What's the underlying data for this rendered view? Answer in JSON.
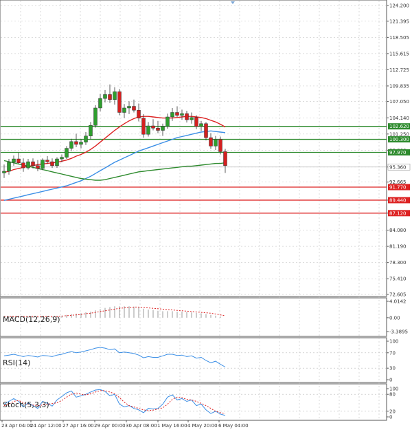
{
  "chart_data": {
    "type": "candlestick",
    "price": {
      "ylim": [
        72.605,
        124.2
      ],
      "y_ticks": [
        124.2,
        121.395,
        118.505,
        115.615,
        112.725,
        109.835,
        107.05,
        104.14,
        101.25,
        98.36,
        95.36,
        92.665,
        89.44,
        87.12,
        84.08,
        81.19,
        78.3,
        75.41,
        72.605
      ],
      "y_tick_labels": [
        "124.200",
        "121.395",
        "118.505",
        "115.615",
        "112.725",
        "109.835",
        "107.050",
        "104.140",
        "101.250",
        "98.360",
        "95.360",
        "92.665",
        "89.440",
        "87.120",
        "84.080",
        "81.190",
        "78.300",
        "75.410",
        "72.605"
      ],
      "resistance_levels": [
        {
          "value": 102.62,
          "label": "102.620",
          "color": "#2e8b2e"
        },
        {
          "value": 100.3,
          "label": "100.300",
          "color": "#2e8b2e"
        },
        {
          "value": 97.97,
          "label": "97.970",
          "color": "#2e8b2e"
        }
      ],
      "support_levels": [
        {
          "value": 91.77,
          "label": "91.770",
          "color": "#dd2222"
        },
        {
          "value": 89.44,
          "label": "89.440",
          "color": "#dd2222"
        },
        {
          "value": 87.12,
          "label": "87.120",
          "color": "#dd2222"
        }
      ],
      "current_price": {
        "value": 95.36,
        "label": "95.360"
      },
      "candles": [
        [
          94.3,
          95.8,
          93.4,
          94.6
        ],
        [
          94.6,
          96.8,
          94.0,
          96.2
        ],
        [
          96.2,
          97.4,
          95.6,
          96.8
        ],
        [
          96.8,
          97.9,
          95.9,
          96.1
        ],
        [
          96.1,
          96.9,
          94.5,
          95.2
        ],
        [
          95.2,
          96.8,
          94.9,
          96.3
        ],
        [
          96.3,
          96.9,
          95.1,
          95.6
        ],
        [
          95.6,
          96.6,
          94.6,
          95.1
        ],
        [
          95.1,
          96.9,
          94.8,
          96.6
        ],
        [
          96.6,
          97.3,
          95.9,
          96.3
        ],
        [
          96.3,
          96.9,
          95.2,
          95.6
        ],
        [
          95.6,
          97.1,
          95.2,
          96.8
        ],
        [
          96.8,
          97.6,
          96.2,
          97.1
        ],
        [
          97.1,
          99.1,
          96.8,
          98.7
        ],
        [
          98.7,
          100.4,
          98.2,
          99.9
        ],
        [
          99.9,
          101.3,
          98.9,
          99.4
        ],
        [
          99.4,
          100.3,
          98.7,
          99.8
        ],
        [
          99.8,
          101.6,
          99.3,
          100.9
        ],
        [
          100.9,
          103.4,
          100.3,
          102.8
        ],
        [
          102.8,
          106.4,
          102.4,
          105.9
        ],
        [
          105.9,
          108.4,
          105.3,
          107.6
        ],
        [
          107.6,
          109.1,
          106.9,
          108.3
        ],
        [
          108.3,
          110.1,
          106.8,
          107.4
        ],
        [
          107.4,
          109.6,
          106.5,
          108.8
        ],
        [
          108.8,
          109.3,
          104.6,
          105.1
        ],
        [
          105.1,
          106.6,
          104.1,
          105.9
        ],
        [
          105.9,
          107.1,
          104.8,
          106.2
        ],
        [
          106.2,
          107.4,
          105.1,
          105.5
        ],
        [
          105.5,
          106.7,
          103.5,
          104.1
        ],
        [
          104.1,
          104.8,
          100.6,
          101.2
        ],
        [
          101.2,
          103.4,
          100.8,
          102.7
        ],
        [
          102.7,
          103.9,
          101.9,
          102.3
        ],
        [
          102.3,
          103.6,
          101.4,
          101.9
        ],
        [
          101.9,
          103.1,
          100.9,
          102.6
        ],
        [
          102.6,
          104.9,
          102.2,
          104.3
        ],
        [
          104.3,
          105.9,
          103.6,
          105.1
        ],
        [
          105.1,
          106.2,
          104.3,
          104.6
        ],
        [
          104.6,
          105.6,
          103.8,
          104.9
        ],
        [
          104.9,
          105.4,
          103.3,
          103.8
        ],
        [
          103.8,
          105.1,
          103.1,
          104.2
        ],
        [
          104.2,
          104.6,
          102.1,
          102.6
        ],
        [
          102.6,
          103.6,
          101.8,
          103.1
        ],
        [
          103.1,
          103.4,
          100.1,
          100.6
        ],
        [
          100.6,
          101.4,
          98.6,
          99.1
        ],
        [
          99.1,
          100.9,
          98.4,
          100.3
        ],
        [
          100.3,
          100.8,
          97.6,
          98.1
        ],
        [
          98.1,
          98.6,
          94.3,
          95.6
        ]
      ],
      "series": [
        {
          "name": "",
          "color": "#dd2222",
          "values": [
            94.4,
            94.6,
            94.9,
            95.1,
            95.3,
            95.5,
            95.6,
            95.8,
            95.9,
            96.0,
            96.1,
            96.2,
            96.4,
            96.6,
            96.9,
            97.3,
            97.6,
            98.0,
            98.5,
            99.1,
            99.8,
            100.5,
            101.2,
            101.9,
            102.5,
            103.1,
            103.6,
            104.0,
            104.3,
            104.4,
            104.4,
            104.3,
            104.2,
            104.1,
            104.1,
            104.1,
            104.2,
            104.3,
            104.4,
            104.4,
            104.3,
            104.2,
            104.0,
            103.7,
            103.4,
            103.0,
            102.5
          ]
        },
        {
          "name": "",
          "color": "#3a8ee6",
          "values": [
            89.4,
            89.6,
            89.8,
            90.0,
            90.2,
            90.4,
            90.6,
            90.8,
            91.0,
            91.2,
            91.4,
            91.6,
            91.8,
            92.0,
            92.3,
            92.6,
            92.9,
            93.3,
            93.7,
            94.2,
            94.7,
            95.2,
            95.7,
            96.2,
            96.6,
            97.0,
            97.4,
            97.8,
            98.2,
            98.5,
            98.8,
            99.1,
            99.4,
            99.7,
            100.0,
            100.3,
            100.6,
            100.8,
            101.0,
            101.2,
            101.4,
            101.6,
            101.7,
            101.8,
            101.7,
            101.6,
            101.5
          ]
        },
        {
          "name": "",
          "color": "#2e8b2e",
          "values": [
            96.5,
            96.3,
            96.1,
            95.9,
            95.7,
            95.5,
            95.3,
            95.1,
            94.9,
            94.7,
            94.5,
            94.3,
            94.1,
            93.9,
            93.7,
            93.5,
            93.3,
            93.2,
            93.1,
            93.0,
            93.0,
            93.1,
            93.3,
            93.5,
            93.7,
            93.9,
            94.1,
            94.3,
            94.5,
            94.6,
            94.7,
            94.8,
            94.9,
            95.0,
            95.1,
            95.2,
            95.3,
            95.4,
            95.5,
            95.5,
            95.6,
            95.7,
            95.8,
            95.9,
            96.0,
            96.0,
            96.1
          ]
        }
      ]
    },
    "macd": {
      "label": "MACD(12,26,9)",
      "ylim": [
        -3.3895,
        4.0142
      ],
      "y_ticks": [
        4.0142,
        0.0,
        -3.3895
      ],
      "y_tick_labels": [
        "4.0142",
        "0.00",
        "-3.3895"
      ],
      "histogram": [
        0.2,
        0.3,
        0.4,
        0.4,
        0.3,
        0.3,
        0.3,
        0.2,
        0.3,
        0.3,
        0.3,
        0.4,
        0.5,
        0.7,
        0.9,
        1.0,
        1.1,
        1.3,
        1.5,
        1.8,
        2.1,
        2.4,
        2.6,
        2.8,
        2.8,
        2.8,
        2.8,
        2.7,
        2.5,
        2.2,
        2.0,
        1.9,
        1.7,
        1.6,
        1.6,
        1.6,
        1.5,
        1.5,
        1.4,
        1.3,
        1.2,
        1.1,
        0.9,
        0.7,
        0.5,
        0.3,
        0.0
      ],
      "signal": [
        0.3,
        0.3,
        0.3,
        0.3,
        0.3,
        0.3,
        0.3,
        0.3,
        0.3,
        0.3,
        0.3,
        0.3,
        0.4,
        0.5,
        0.6,
        0.7,
        0.8,
        1.0,
        1.1,
        1.3,
        1.5,
        1.7,
        1.9,
        2.1,
        2.3,
        2.4,
        2.5,
        2.6,
        2.6,
        2.5,
        2.4,
        2.3,
        2.2,
        2.1,
        2.0,
        1.9,
        1.8,
        1.7,
        1.6,
        1.5,
        1.4,
        1.3,
        1.2,
        1.1,
        0.9,
        0.7,
        0.5
      ]
    },
    "rsi": {
      "label": "RSI(14)",
      "ylim": [
        0,
        100
      ],
      "y_ticks": [
        100,
        70,
        30,
        0
      ],
      "y_tick_labels": [
        "100",
        "70",
        "30",
        "0"
      ],
      "values": [
        62,
        64,
        66,
        63,
        60,
        63,
        61,
        59,
        63,
        62,
        60,
        64,
        66,
        70,
        73,
        70,
        72,
        75,
        78,
        82,
        84,
        82,
        78,
        80,
        70,
        72,
        70,
        68,
        64,
        57,
        60,
        58,
        58,
        62,
        66,
        66,
        63,
        64,
        60,
        62,
        56,
        58,
        50,
        44,
        48,
        40,
        33
      ]
    },
    "stoch": {
      "label": "Stoch(5,3,3)",
      "ylim": [
        0,
        100
      ],
      "y_ticks": [
        100,
        80,
        20,
        0
      ],
      "y_tick_labels": [
        "100",
        "80",
        "20",
        "0"
      ],
      "k": [
        45,
        55,
        65,
        55,
        35,
        50,
        40,
        30,
        55,
        48,
        38,
        60,
        72,
        85,
        92,
        70,
        75,
        80,
        88,
        95,
        97,
        90,
        75,
        80,
        45,
        35,
        40,
        30,
        25,
        15,
        30,
        28,
        30,
        45,
        70,
        78,
        60,
        65,
        55,
        60,
        40,
        45,
        25,
        12,
        20,
        10,
        5
      ],
      "d": [
        40,
        45,
        55,
        58,
        50,
        45,
        42,
        40,
        42,
        45,
        47,
        50,
        58,
        70,
        80,
        85,
        80,
        78,
        82,
        88,
        93,
        93,
        88,
        82,
        68,
        52,
        40,
        35,
        30,
        25,
        22,
        24,
        28,
        32,
        45,
        62,
        70,
        68,
        62,
        60,
        55,
        48,
        40,
        30,
        20,
        15,
        12
      ]
    },
    "x_tick_labels": [
      "23 Apr 04:00",
      "24 Apr 12:00",
      "27 Apr 16:00",
      "29 Apr 00:00",
      "30 Apr 08:00",
      "1 May 16:00",
      "4 May 20:00",
      "6 May 04:00"
    ],
    "grid": true
  }
}
